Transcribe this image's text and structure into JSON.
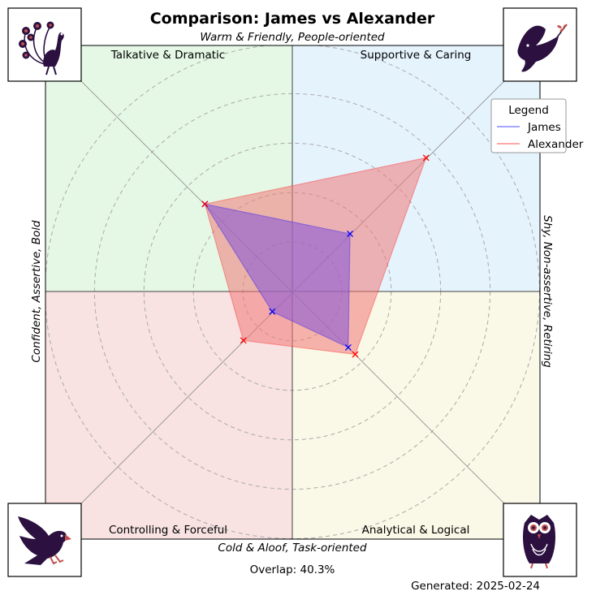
{
  "chart_data": {
    "type": "radar",
    "title": "Comparison: James vs Alexander",
    "axes": {
      "top": "Warm & Friendly, People-oriented",
      "bottom": "Cold & Aloof, Task-oriented",
      "left": "Confident, Assertive, Bold",
      "right": "Shy, Non-assertive, Retiring"
    },
    "quadrants": {
      "top_left": "Talkative & Dramatic",
      "top_right": "Supportive & Caring",
      "bottom_left": "Controlling & Forceful",
      "bottom_right": "Analytical & Logical"
    },
    "quadrant_colors": {
      "top_left": "#e5f8e5",
      "top_right": "#e5f3fd",
      "bottom_left": "#f8e2e2",
      "bottom_right": "#faf8e6"
    },
    "icons": {
      "top_left": "peacock-icon",
      "top_right": "dove-icon",
      "bottom_left": "eagle-icon",
      "bottom_right": "owl-icon"
    },
    "icon_color": "#2b1040",
    "icon_accent": "#c0504d",
    "rlim": [
      0,
      10
    ],
    "rings": [
      2,
      4,
      6,
      8,
      10
    ],
    "series": [
      {
        "name": "James",
        "color": "#0000ff",
        "fill": "#8a5bd6",
        "points": [
          {
            "quadrant": "top_right",
            "r": 3.3
          },
          {
            "quadrant": "bottom_right",
            "r": 3.2
          },
          {
            "quadrant": "bottom_left",
            "r": 1.15
          },
          {
            "quadrant": "top_left",
            "r": 5.0
          }
        ]
      },
      {
        "name": "Alexander",
        "color": "#ff0000",
        "fill": "#f07878",
        "points": [
          {
            "quadrant": "top_right",
            "r": 7.65
          },
          {
            "quadrant": "bottom_right",
            "r": 3.6
          },
          {
            "quadrant": "bottom_left",
            "r": 2.8
          },
          {
            "quadrant": "top_left",
            "r": 5.0
          }
        ]
      }
    ],
    "legend": {
      "title": "Legend",
      "position": "upper-right"
    }
  },
  "overlap_text": "Overlap: 40.3%",
  "generated_text": "Generated: 2025-02-24"
}
